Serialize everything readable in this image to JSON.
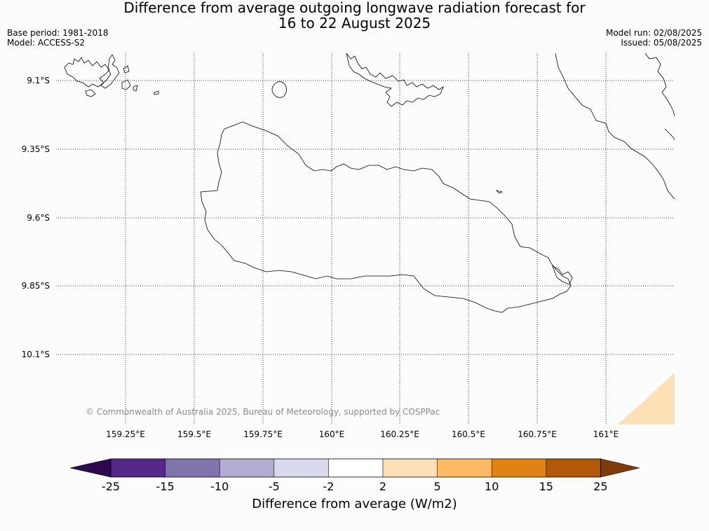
{
  "title": {
    "line1": "Difference from average outgoing longwave radiation forecast for",
    "line2": "16 to 22 August 2025"
  },
  "meta": {
    "base_period": "Base period: 1981-2018",
    "model": "Model: ACCESS-S2",
    "model_run": "Model run: 02/08/2025",
    "issued": "Issued: 05/08/2025"
  },
  "map": {
    "lat_labels": [
      "9.1°S",
      "9.35°S",
      "9.6°S",
      "9.85°S",
      "10.1°S"
    ],
    "lon_labels": [
      "159.25°E",
      "159.5°E",
      "159.75°E",
      "160°E",
      "160.25°E",
      "160.5°E",
      "160.75°E",
      "161°E"
    ],
    "copyright": "© Commonwealth of Australia 2025, Bureau of Meteorology, supported by COSPPac",
    "anomaly_patch_bin": "2 to 5",
    "anomaly_patch_color": "#fde0b6",
    "coastline_color": "#000000",
    "gridline_style": "dotted"
  },
  "colorbar": {
    "label": "Difference from average (W/m2)",
    "ticks": [
      "-25",
      "-15",
      "-10",
      "-5",
      "-2",
      "2",
      "5",
      "10",
      "15",
      "25"
    ],
    "under_color": "#2d0a4e",
    "over_color": "#7f3b08",
    "colors": [
      "#542788",
      "#8073ac",
      "#b2abd2",
      "#d8daeb",
      "#ffffff",
      "#fee0b6",
      "#fdb863",
      "#e08214",
      "#b35806"
    ]
  }
}
